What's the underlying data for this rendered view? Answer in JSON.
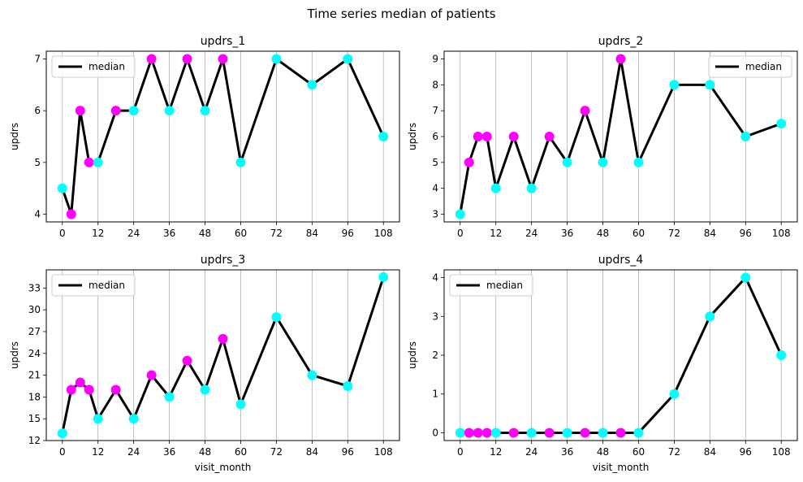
{
  "suptitle": "Time series median of patients",
  "colors": {
    "line": "#000000",
    "grid": "#b0b0b0",
    "cyan": "#00ffff",
    "magenta": "#ff00ff"
  },
  "chart_data": [
    {
      "type": "line",
      "title": "updrs_1",
      "xlabel": "",
      "ylabel": "updrs",
      "legend": "median",
      "legend_position": "top-left",
      "grid": "x",
      "xlim": [
        -5.4,
        113.4
      ],
      "ylim": [
        3.85,
        7.15
      ],
      "xticks": [
        0,
        12,
        24,
        36,
        48,
        60,
        72,
        84,
        96,
        108
      ],
      "yticks": [
        4,
        5,
        6,
        7
      ],
      "x": [
        0,
        3,
        6,
        9,
        12,
        18,
        24,
        30,
        36,
        42,
        48,
        54,
        60,
        72,
        84,
        96,
        108
      ],
      "series": [
        {
          "name": "median",
          "values": [
            4.5,
            4,
            6,
            5,
            5,
            6,
            6,
            7,
            6,
            7,
            6,
            7,
            5,
            7,
            6.5,
            7,
            5.5
          ]
        }
      ],
      "point_colors": [
        "cyan",
        "magenta",
        "magenta",
        "magenta",
        "cyan",
        "magenta",
        "cyan",
        "magenta",
        "cyan",
        "magenta",
        "cyan",
        "magenta",
        "cyan",
        "cyan",
        "cyan",
        "cyan",
        "cyan"
      ]
    },
    {
      "type": "line",
      "title": "updrs_2",
      "xlabel": "",
      "ylabel": "updrs",
      "legend": "median",
      "legend_position": "top-right",
      "grid": "x",
      "xlim": [
        -5.4,
        113.4
      ],
      "ylim": [
        2.7,
        9.3
      ],
      "xticks": [
        0,
        12,
        24,
        36,
        48,
        60,
        72,
        84,
        96,
        108
      ],
      "yticks": [
        3,
        4,
        5,
        6,
        7,
        8,
        9
      ],
      "x": [
        0,
        3,
        6,
        9,
        12,
        18,
        24,
        30,
        36,
        42,
        48,
        54,
        60,
        72,
        84,
        96,
        108
      ],
      "series": [
        {
          "name": "median",
          "values": [
            3,
            5,
            6,
            6,
            4,
            6,
            4,
            6,
            5,
            7,
            5,
            9,
            5,
            8,
            8,
            6,
            6.5
          ]
        }
      ],
      "point_colors": [
        "cyan",
        "magenta",
        "magenta",
        "magenta",
        "cyan",
        "magenta",
        "cyan",
        "magenta",
        "cyan",
        "magenta",
        "cyan",
        "magenta",
        "cyan",
        "cyan",
        "cyan",
        "cyan",
        "cyan"
      ]
    },
    {
      "type": "line",
      "title": "updrs_3",
      "xlabel": "visit_month",
      "ylabel": "updrs",
      "legend": "median",
      "legend_position": "top-left",
      "grid": "x",
      "xlim": [
        -5.4,
        113.4
      ],
      "ylim": [
        12.0,
        35.5
      ],
      "xticks": [
        0,
        12,
        24,
        36,
        48,
        60,
        72,
        84,
        96,
        108
      ],
      "yticks": [
        12,
        15,
        18,
        21,
        24,
        27,
        30,
        33
      ],
      "x": [
        0,
        3,
        6,
        9,
        12,
        18,
        24,
        30,
        36,
        42,
        48,
        54,
        60,
        72,
        84,
        96,
        108
      ],
      "series": [
        {
          "name": "median",
          "values": [
            13,
            19,
            20,
            19,
            15,
            19,
            15,
            21,
            18,
            23,
            19,
            26,
            17,
            29,
            21,
            19.5,
            34.5
          ]
        }
      ],
      "point_colors": [
        "cyan",
        "magenta",
        "magenta",
        "magenta",
        "cyan",
        "magenta",
        "cyan",
        "magenta",
        "cyan",
        "magenta",
        "cyan",
        "magenta",
        "cyan",
        "cyan",
        "cyan",
        "cyan",
        "cyan"
      ]
    },
    {
      "type": "line",
      "title": "updrs_4",
      "xlabel": "visit_month",
      "ylabel": "updrs",
      "legend": "median",
      "legend_position": "top-left",
      "grid": "x",
      "xlim": [
        -5.4,
        113.4
      ],
      "ylim": [
        -0.2,
        4.2
      ],
      "xticks": [
        0,
        12,
        24,
        36,
        48,
        60,
        72,
        84,
        96,
        108
      ],
      "yticks": [
        0,
        1,
        2,
        3,
        4
      ],
      "x": [
        0,
        3,
        6,
        9,
        12,
        18,
        24,
        30,
        36,
        42,
        48,
        54,
        60,
        72,
        84,
        96,
        108
      ],
      "series": [
        {
          "name": "median",
          "values": [
            0,
            0,
            0,
            0,
            0,
            0,
            0,
            0,
            0,
            0,
            0,
            0,
            0,
            1,
            3,
            4,
            2
          ]
        }
      ],
      "point_colors": [
        "cyan",
        "magenta",
        "magenta",
        "magenta",
        "cyan",
        "magenta",
        "cyan",
        "magenta",
        "cyan",
        "magenta",
        "cyan",
        "magenta",
        "cyan",
        "cyan",
        "cyan",
        "cyan",
        "cyan"
      ]
    }
  ]
}
